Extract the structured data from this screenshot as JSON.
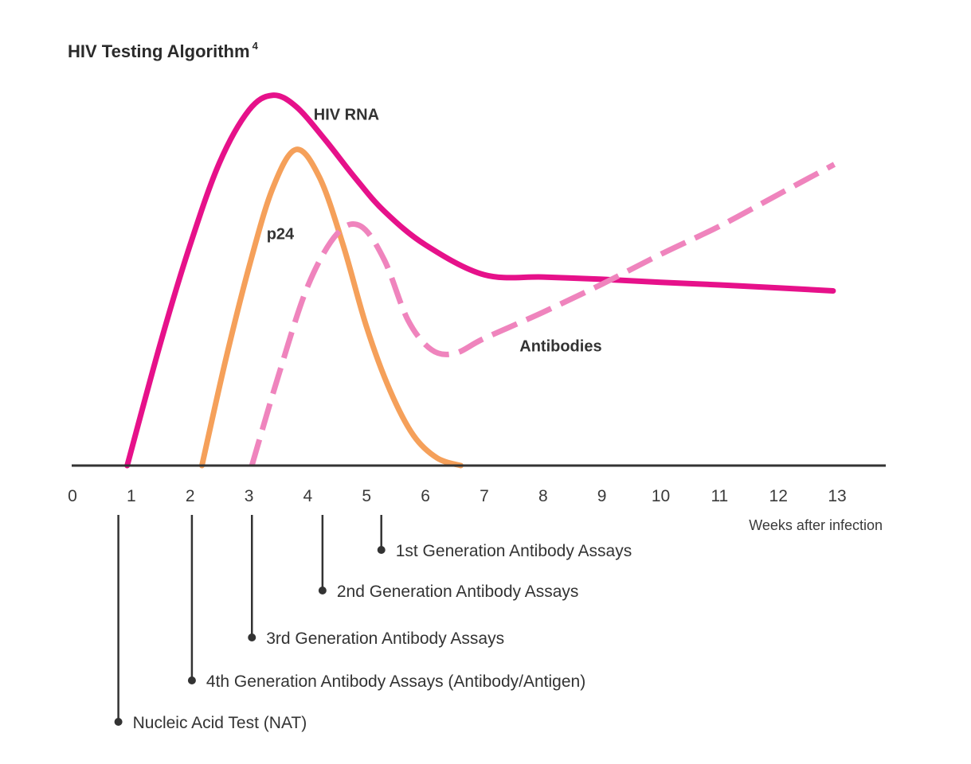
{
  "chart_data": {
    "type": "line",
    "title": "HIV Testing Algorithm",
    "title_superscript": "4",
    "xlabel": "Weeks after infection",
    "ylabel": "",
    "xlim": [
      0,
      14
    ],
    "ylim": [
      0,
      100
    ],
    "x_ticks": [
      "0",
      "1",
      "2",
      "3",
      "4",
      "5",
      "6",
      "7",
      "8",
      "9",
      "10",
      "11",
      "12",
      "13"
    ],
    "grid": false,
    "legend": "none (series labelled directly on the lines)",
    "colors": {
      "hiv_rna": "#e6118a",
      "p24": "#f5a05a",
      "antibodies": "#ef84bd",
      "axis": "#333333",
      "text": "#333333"
    },
    "series": [
      {
        "name": "HIV RNA",
        "style": "solid",
        "color": "#e6118a",
        "x": [
          0.93,
          1.5,
          2.0,
          2.5,
          3.0,
          3.4,
          3.8,
          4.3,
          4.8,
          5.3,
          6.0,
          7.0,
          8.0,
          9.0,
          10.0,
          11.0,
          12.0,
          12.93
        ],
        "y": [
          0,
          33,
          59,
          81,
          95,
          99,
          96,
          87,
          77,
          68,
          59,
          51,
          50.4,
          49.8,
          49,
          48.3,
          47.5,
          46.7
        ]
      },
      {
        "name": "p24",
        "style": "solid",
        "color": "#f5a05a",
        "x": [
          2.2,
          2.6,
          3.0,
          3.4,
          3.8,
          4.2,
          4.6,
          5.0,
          5.4,
          5.8,
          6.2,
          6.6
        ],
        "y": [
          0,
          28,
          53,
          74,
          84.5,
          77,
          59,
          37,
          20,
          8,
          2,
          0
        ]
      },
      {
        "name": "Antibodies",
        "style": "dashed",
        "color": "#ef84bd",
        "x": [
          3.05,
          3.5,
          4.0,
          4.5,
          4.9,
          5.3,
          5.7,
          6.1,
          6.5,
          7.0,
          8.0,
          9.0,
          10.0,
          11.0,
          12.0,
          12.95
        ],
        "y": [
          0,
          24,
          48,
          62,
          64,
          55,
          39,
          31,
          30,
          34,
          41,
          48.5,
          56.5,
          64,
          72.5,
          80.5
        ]
      }
    ],
    "series_labels": [
      {
        "series": "HIV RNA",
        "text": "HIV RNA",
        "x": 4.1,
        "y": 92.5
      },
      {
        "series": "p24",
        "text": "p24",
        "x": 3.3,
        "y": 60.5
      },
      {
        "series": "Antibodies",
        "text": "Antibodies",
        "x": 7.6,
        "y": 30.5
      }
    ],
    "annotations": [
      {
        "name": "Nucleic Acid Test (NAT)",
        "week": 0.78,
        "level": 5
      },
      {
        "name": "4th Generation Antibody Assays (Antibody/Antigen)",
        "week": 2.03,
        "level": 4
      },
      {
        "name": "3rd Generation Antibody Assays",
        "week": 3.05,
        "level": 3
      },
      {
        "name": "2nd Generation Antibody Assays",
        "week": 4.25,
        "level": 2
      },
      {
        "name": "1st Generation Antibody Assays",
        "week": 5.25,
        "level": 1
      }
    ]
  }
}
